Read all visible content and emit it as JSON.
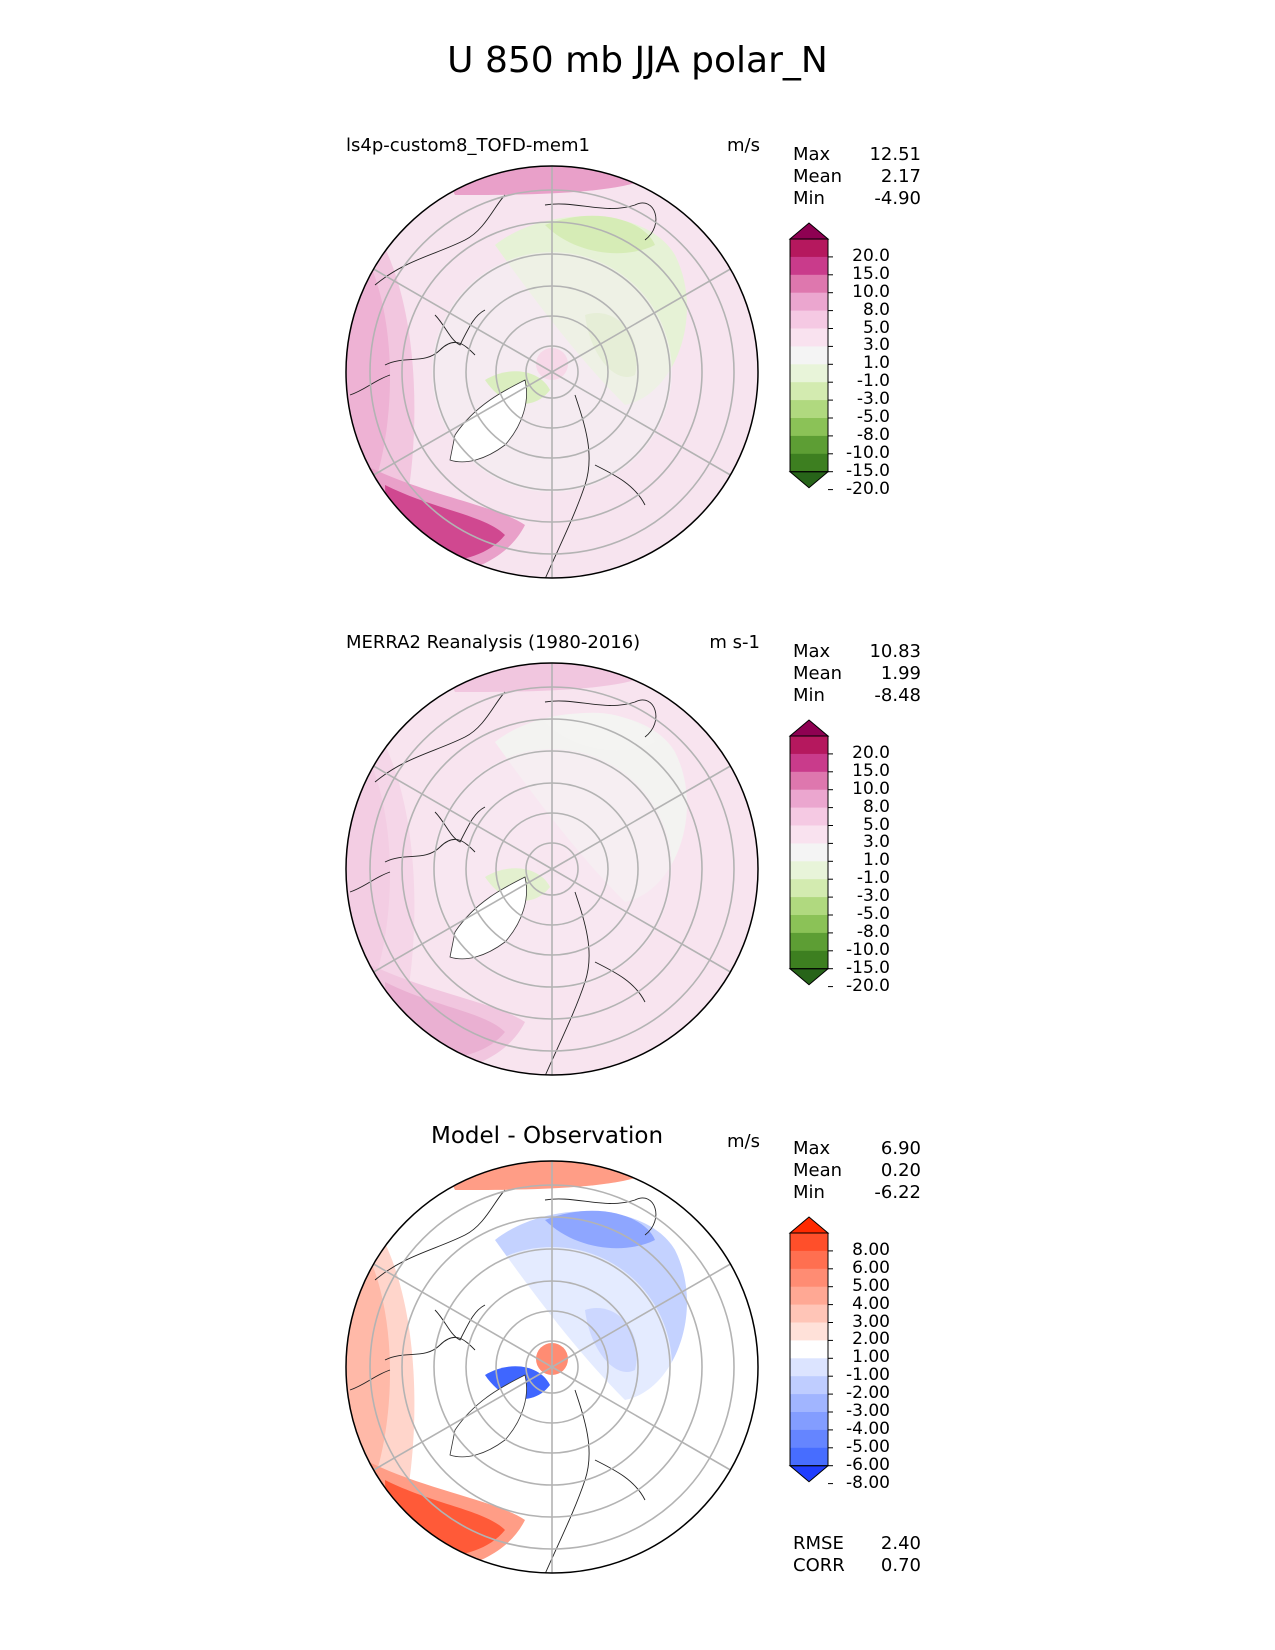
{
  "figure_title": "U 850 mb JJA polar_N",
  "chart_data": [
    {
      "type": "heatmap",
      "projection": "north polar stereographic",
      "title": "ls4p-custom8_TOFD-mem1",
      "units": "m/s",
      "stats": [
        {
          "label": "Max",
          "value": "12.51"
        },
        {
          "label": "Mean",
          "value": "2.17"
        },
        {
          "label": "Min",
          "value": "-4.90"
        }
      ],
      "colorbar": {
        "levels": [
          "20.0",
          "15.0",
          "10.0",
          "8.0",
          "5.0",
          "3.0",
          "1.0",
          "-1.0",
          "-3.0",
          "-5.0",
          "-8.0",
          "-10.0",
          "-15.0",
          "-20.0"
        ],
        "colors": [
          "#8e0152",
          "#b5185e",
          "#c93b8b",
          "#de77ae",
          "#eba6cf",
          "#f5c9e3",
          "#f9e2ef",
          "#f4f4f4",
          "#e8f4d9",
          "#d3ebb0",
          "#b0d97f",
          "#8bc257",
          "#5d9e34",
          "#3d7f20",
          "#276419"
        ]
      },
      "regions": {
        "background": "#f7e4ef",
        "inner_ring": "#f4f0f2",
        "strong_southwest": "#d04890",
        "mid_southwest": "#e9a0c9",
        "west": "#eeb2d4",
        "northeast_negative": "#e6f2d6",
        "northeast_core": "#d6ecb6",
        "pole_positive": "#f7d8e8",
        "greenland_negative": "#dbeec0"
      }
    },
    {
      "type": "heatmap",
      "projection": "north polar stereographic",
      "title": "MERRA2 Reanalysis (1980-2016)",
      "units": "m s-1",
      "stats": [
        {
          "label": "Max",
          "value": "10.83"
        },
        {
          "label": "Mean",
          "value": "1.99"
        },
        {
          "label": "Min",
          "value": "-8.48"
        }
      ],
      "colorbar": {
        "levels": [
          "20.0",
          "15.0",
          "10.0",
          "8.0",
          "5.0",
          "3.0",
          "1.0",
          "-1.0",
          "-3.0",
          "-5.0",
          "-8.0",
          "-10.0",
          "-15.0",
          "-20.0"
        ],
        "colors": [
          "#8e0152",
          "#b5185e",
          "#c93b8b",
          "#de77ae",
          "#eba6cf",
          "#f5c9e3",
          "#f9e2ef",
          "#f4f4f4",
          "#e8f4d9",
          "#d3ebb0",
          "#b0d97f",
          "#8bc257",
          "#5d9e34",
          "#3d7f20",
          "#276419"
        ]
      },
      "regions": {
        "background": "#f8e4ef",
        "inner_ring": "#f8eaf2",
        "strong_southwest": "#eab0d2",
        "mid_southwest": "#f1c6df",
        "west": "#f3cde3",
        "northeast_negative": "#f3f3f1",
        "northeast_core": "#f4f4f2",
        "pole_positive": "#f8e6f0",
        "greenland_negative": "#e3f0cf"
      }
    },
    {
      "type": "heatmap",
      "projection": "north polar stereographic",
      "title": "Model - Observation",
      "units": "m/s",
      "stats": [
        {
          "label": "Max",
          "value": "6.90"
        },
        {
          "label": "Mean",
          "value": "0.20"
        },
        {
          "label": "Min",
          "value": "-6.22"
        }
      ],
      "colorbar": {
        "levels": [
          "8.00",
          "6.00",
          "5.00",
          "4.00",
          "3.00",
          "2.00",
          "1.00",
          "-1.00",
          "-2.00",
          "-3.00",
          "-4.00",
          "-5.00",
          "-6.00",
          "-8.00"
        ],
        "colors": [
          "#ff2a00",
          "#ff4f2a",
          "#ff6f50",
          "#ff8c73",
          "#ffa894",
          "#ffc5b7",
          "#ffe1d9",
          "#ffffff",
          "#dce4ff",
          "#bfcdff",
          "#a1b5ff",
          "#839dff",
          "#6585ff",
          "#476dff",
          "#1f3dff"
        ]
      },
      "metrics": [
        {
          "label": "RMSE",
          "value": "2.40"
        },
        {
          "label": "CORR",
          "value": "0.70"
        }
      ],
      "regions": {
        "background": "#ffffff",
        "inner_ring": "#ffffff",
        "strong_southwest": "#ff5a38",
        "mid_southwest": "#ff9d86",
        "west": "#ffb9a8",
        "northeast_negative": "#c4d2ff",
        "northeast_core": "#8ea6ff",
        "pole_positive": "#ff8c73",
        "greenland_negative": "#3f66ff"
      }
    }
  ]
}
